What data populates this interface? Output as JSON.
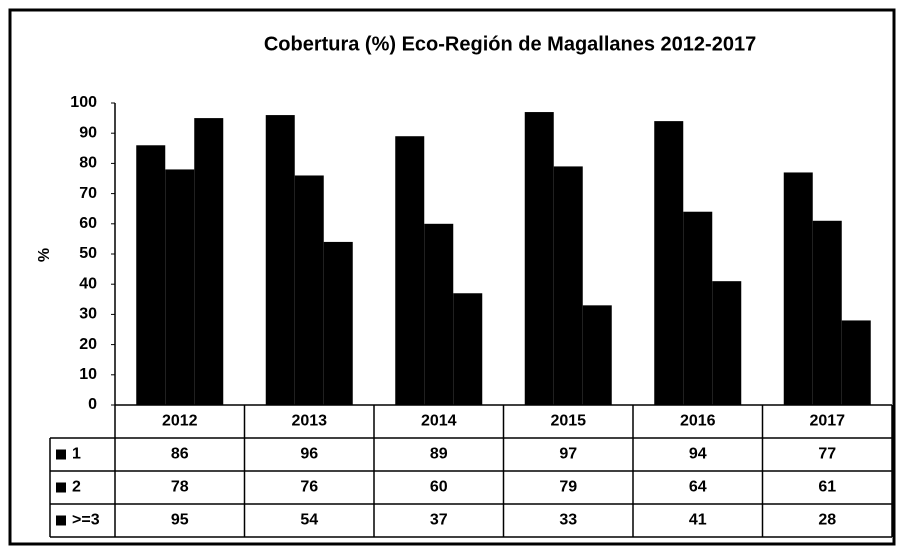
{
  "chart_data": {
    "type": "bar",
    "title": "Cobertura (%) Eco-Región de Magallanes 2012-2017",
    "y_label": "%",
    "categories": [
      "2012",
      "2013",
      "2014",
      "2015",
      "2016",
      "2017"
    ],
    "series": [
      {
        "name": "1",
        "color": "#000000",
        "values": [
          86,
          96,
          89,
          97,
          94,
          77
        ]
      },
      {
        "name": "2",
        "color": "#000000",
        "values": [
          78,
          76,
          60,
          79,
          64,
          61
        ]
      },
      {
        "name": ">=3",
        "color": "#000000",
        "values": [
          95,
          54,
          37,
          33,
          41,
          28
        ]
      }
    ],
    "ylim": [
      0,
      100
    ],
    "yticks": [
      0,
      10,
      20,
      30,
      40,
      50,
      60,
      70,
      80,
      90,
      100
    ],
    "grid": false,
    "data_table": true
  }
}
